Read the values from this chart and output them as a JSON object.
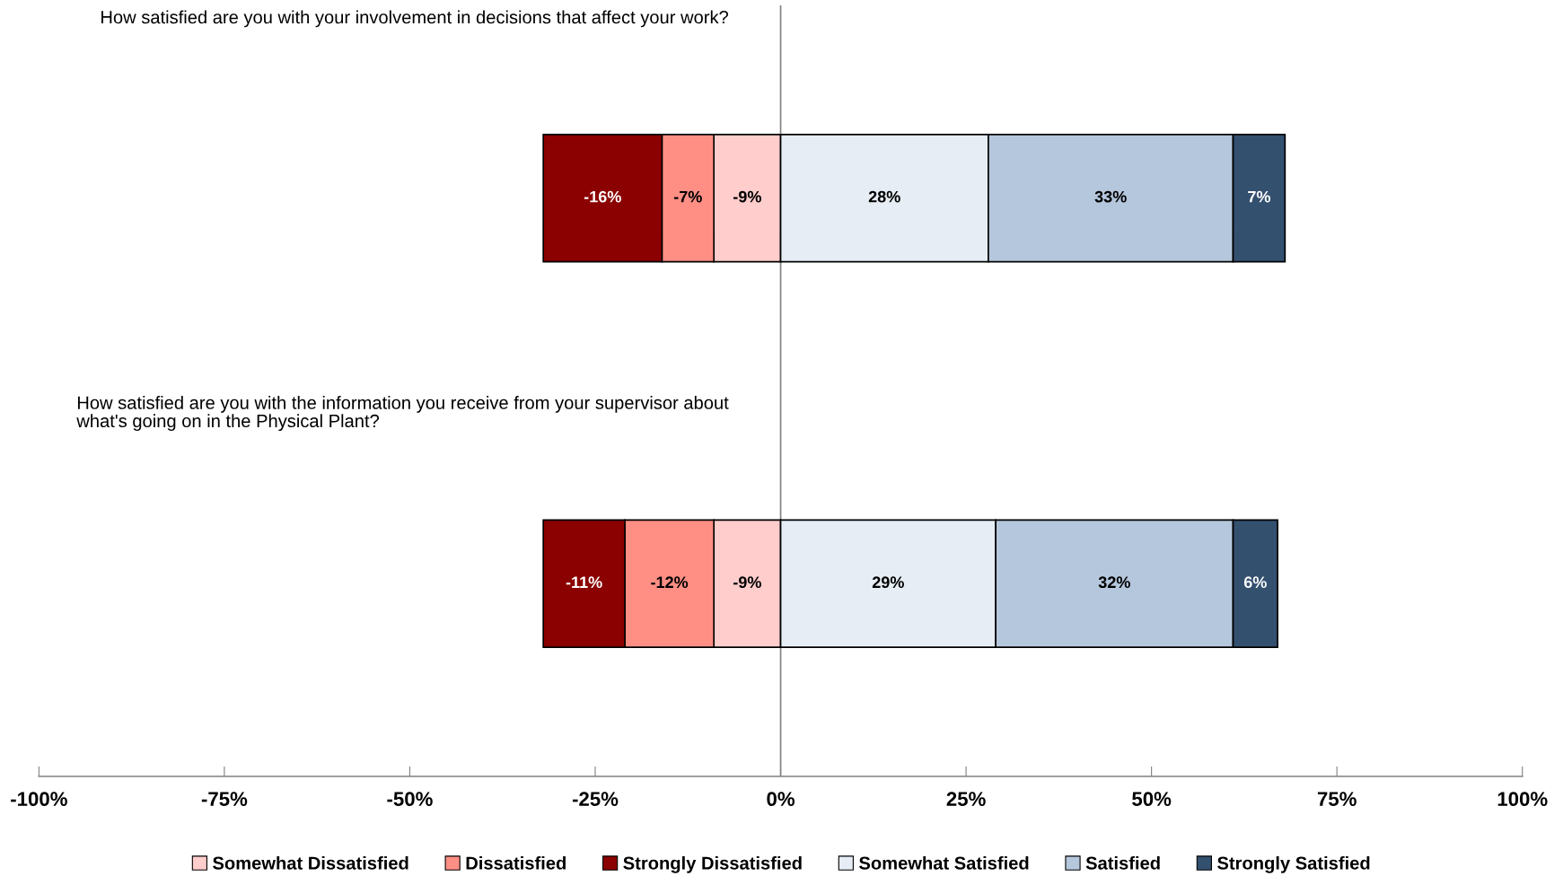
{
  "chart_data": {
    "type": "bar",
    "orientation": "horizontal",
    "stacked": true,
    "categories": [
      "How satisfied are you with your involvement in decisions that affect your work?",
      "How satisfied are you with the information you receive from your supervisor about what's going on in the Physical Plant?"
    ],
    "series": [
      {
        "name": "Somewhat Dissatisfied",
        "color": "#ffcdcb",
        "values": [
          -9,
          -9
        ],
        "value_labels": [
          "-9%",
          "-9%"
        ]
      },
      {
        "name": "Dissatisfied",
        "color": "#ff8f85",
        "values": [
          -7,
          -12
        ],
        "value_labels": [
          "-7%",
          "-12%"
        ]
      },
      {
        "name": "Strongly Dissatisfied",
        "color": "#8b0000",
        "values": [
          -16,
          -11
        ],
        "value_labels": [
          "-16%",
          "-11%"
        ]
      },
      {
        "name": "Somewhat Satisfied",
        "color": "#e6edf4",
        "values": [
          28,
          29
        ],
        "value_labels": [
          "28%",
          "29%"
        ]
      },
      {
        "name": "Satisfied",
        "color": "#b5c7dc",
        "values": [
          33,
          32
        ],
        "value_labels": [
          "33%",
          "32%"
        ]
      },
      {
        "name": "Strongly Satisfied",
        "color": "#34506f",
        "values": [
          7,
          6
        ],
        "value_labels": [
          "7%",
          "6%"
        ]
      }
    ],
    "xlim": [
      -100,
      100
    ],
    "xticks": [
      {
        "value": -100,
        "label": "-100%"
      },
      {
        "value": -75,
        "label": "-75%"
      },
      {
        "value": -50,
        "label": "-50%"
      },
      {
        "value": -25,
        "label": "-25%"
      },
      {
        "value": 0,
        "label": "0%"
      },
      {
        "value": 25,
        "label": "25%"
      },
      {
        "value": 50,
        "label": "50%"
      },
      {
        "value": 75,
        "label": "75%"
      },
      {
        "value": 100,
        "label": "100%"
      }
    ],
    "grid": false,
    "legend": "bottom",
    "ref_lines": [
      {
        "axis": "x",
        "value": 0,
        "color": "#808080"
      }
    ]
  }
}
